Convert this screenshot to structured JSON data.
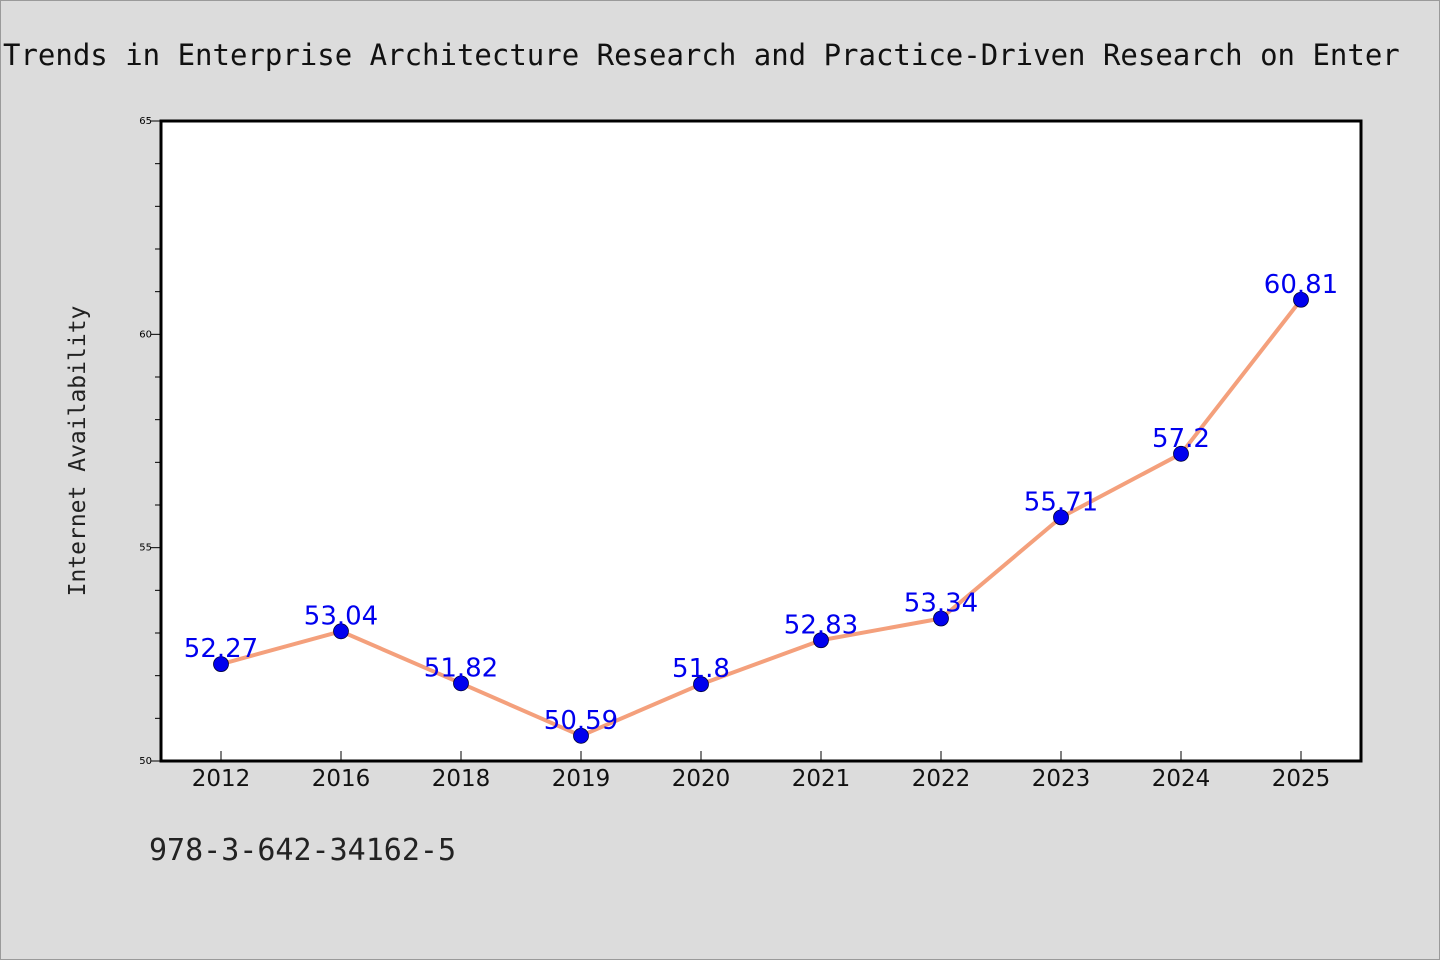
{
  "chart_data": {
    "type": "line",
    "title": "Trends in Enterprise Architecture Research and Practice-Driven Research on Enter",
    "ylabel": "Internet Availability",
    "xlabel": "",
    "categories": [
      "2012",
      "2016",
      "2018",
      "2019",
      "2020",
      "2021",
      "2022",
      "2023",
      "2024",
      "2025"
    ],
    "series": [
      {
        "values": [
          52.27,
          53.04,
          51.82,
          50.59,
          51.8,
          52.83,
          53.34,
          55.71,
          57.2,
          60.81
        ],
        "data_labels": [
          "52.27",
          "53.04",
          "51.82",
          "50.59",
          "51.8",
          "52.83",
          "53.34",
          "55.71",
          "57.2",
          "60.81"
        ]
      }
    ],
    "ylim": [
      50,
      65
    ],
    "yticks": [
      "50",
      "55",
      "60",
      "65"
    ],
    "grid": false,
    "line_color": "#f4a07c",
    "marker_color": "#0000ee",
    "label_color": "#0000ee"
  },
  "footer": {
    "code": "978-3-642-34162-5"
  }
}
